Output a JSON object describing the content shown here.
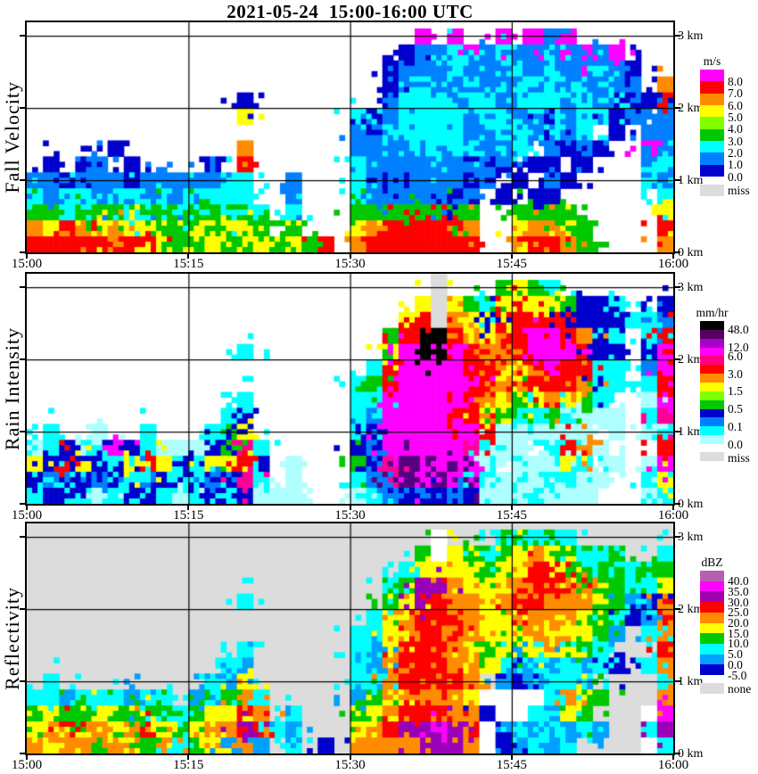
{
  "title": "2021-05-24  15:00-16:00 UTC",
  "chart_data": {
    "type": "heatmap",
    "title": "2021-05-24  15:00-16:00 UTC",
    "x_ticks": [
      "15:00",
      "15:15",
      "15:30",
      "15:45",
      "16:00"
    ],
    "x_tick_minutes": [
      0,
      15,
      30,
      45,
      60
    ],
    "y_km_labels": [
      "3 km",
      "2 km",
      "1 km",
      "0 km"
    ],
    "y_range_km": [
      0,
      3.1
    ],
    "grid": {
      "cols": 40,
      "rows": 14,
      "col_minutes": 1.5,
      "row_km": 0.2214
    },
    "panels": [
      {
        "id": "fall-velocity",
        "ylabel": "Fall Velocity",
        "background": "#FFFFFF",
        "legend": {
          "title": "m/s",
          "cells": [
            "#FF00FF",
            "#FF0000",
            "#FF8C00",
            "#FFFF00",
            "#7FFF00",
            "#00C800",
            "#00FFFF",
            "#0080FF",
            "#0000CD"
          ],
          "labels": [
            {
              "text": "8.0",
              "at": 1
            },
            {
              "text": "7.0",
              "at": 2
            },
            {
              "text": "6.0",
              "at": 3
            },
            {
              "text": "5.0",
              "at": 4
            },
            {
              "text": "4.0",
              "at": 5
            },
            {
              "text": "3.0",
              "at": 6
            },
            {
              "text": "2.0",
              "at": 7
            },
            {
              "text": "1.0",
              "at": 8
            },
            {
              "text": "0.0",
              "at": 9
            }
          ],
          "miss": {
            "color": "#DCDCDC",
            "label": "miss"
          }
        },
        "palette": {
          "0": "#0000CD",
          "1": "#0080FF",
          "2": "#00FFFF",
          "3": "#00C800",
          "4": "#7FFF00",
          "5": "#FFFF00",
          "6": "#FF8C00",
          "7": "#FF0000",
          "8": "#FF00FF"
        },
        "rows": [
          "........................8.8..8.818......",
          ".......................01128121121818...",
          "......................0111211221211210..",
          "......................0121121122121111.6",
          ".............0........122212211221212007",
          ".............5......201222212212012201.17",
          "....................112222211221212.0.11",
          ".....0.......6......11112122112.1010..81",
          ".0.01.0....0.7......2111121101.00.0...12",
          "1101110111112 2..1...210111101.0.10....21",
          "21221221212222..1...21111101.0.00......2",
          "332333233233232.2...33333333..3333.....5",
          "657656553353553.3...56777776..56653....7",
          "7777767753353353537.67777777..67763....6"
        ]
      },
      {
        "id": "rain-intensity",
        "ylabel": "Rain Intensity",
        "background": "#FFFFFF",
        "legend": {
          "title": "mm/hr",
          "cells": [
            "#000000",
            "#550060",
            "#AA00CC",
            "#FF00FF",
            "#FF0080",
            "#FF0000",
            "#FF8C00",
            "#FFFF00",
            "#7FFF00",
            "#00C800",
            "#0000CD",
            "#0080FF",
            "#00FFFF",
            "#AFFFFF"
          ],
          "labels": [
            {
              "text": "48.0",
              "at": 1
            },
            {
              "text": "12.0",
              "at": 3
            },
            {
              "text": "6.0",
              "at": 4
            },
            {
              "text": "3.0",
              "at": 6
            },
            {
              "text": "1.5",
              "at": 8
            },
            {
              "text": "0.5",
              "at": 10
            },
            {
              "text": "0.1",
              "at": 12
            },
            {
              "text": "0.0",
              "at": 14
            }
          ],
          "miss": {
            "color": "#DCDCDC",
            "label": "miss"
          }
        },
        "palette": {
          "p": "#AFFFFF",
          "b": "#00FFFF",
          "m": "#0080FF",
          "d": "#0000CD",
          "g": "#00C800",
          "h": "#7FFF00",
          "y": "#FFFF00",
          "o": "#FF8C00",
          "r": "#FF0000",
          "k": "#FF0096",
          "M": "#FF00FF",
          "i": "#550080",
          "K": "#000000",
          "x": "#DCDCDC"
        },
        "rows": [
          ".........................x...gygb.......",
          "........................yxygbyryygddb..d",
          ".......................yrxoydrrrrddddbbm",
          "......................grKKroyrrMMrodb.br",
          ".............b........yMKKMroorMMMrdd.dM",
          ".....................brMMMMrryorMrrbb.mM",
          "....................bgrMMMMMroyrrrodb.br",
          ".............b......bbMMMMMroygyoygb..pM",
          "............bd......bmMMMMrrygbbgbppp.bk",
          ".b..p..b...bdy......bdMMMMMMrpppppp.p.pb",
          "pbdpbMdbpppdgkb.....dmMMMMMkbpp.brop...r",
          "ydrydbyrydbyyrd.p...gdkiiMiMp.pppyb.p.pM",
          "dmbdmdbmdbdmdkb.p...bmiiMiMibpbpbbpp..by",
          "bddbpbddbpbdbdppp...pbmdmdmdpppbppp...pb"
        ]
      },
      {
        "id": "reflectivity",
        "ylabel": "Reflectivity",
        "background": "#DCDCDC",
        "legend": {
          "title": "dBZ",
          "cells": [
            "#B45FB0",
            "#FF00FF",
            "#A000B0",
            "#FF0000",
            "#FF8C00",
            "#FFFF00",
            "#00C800",
            "#00FFFF",
            "#00A0FF",
            "#0000CD"
          ],
          "labels": [
            {
              "text": "40.0",
              "at": 1
            },
            {
              "text": "35.0",
              "at": 2
            },
            {
              "text": "30.0",
              "at": 3
            },
            {
              "text": "25.0",
              "at": 4
            },
            {
              "text": "20.0",
              "at": 5
            },
            {
              "text": "15.0",
              "at": 6
            },
            {
              "text": "10.0",
              "at": 7
            },
            {
              "text": "5.0",
              "at": 8
            },
            {
              "text": "0.0",
              "at": 9
            },
            {
              "text": "-5.0",
              "at": 10
            }
          ],
          "miss": {
            "color": "#DCDCDC",
            "label": "none"
          }
        },
        "palette": {
          "w": "#FFFFFF",
          "d": "#0000CD",
          "s": "#00A0FF",
          "b": "#00FFFF",
          "g": "#00C800",
          "y": "#FFFF00",
          "o": "#FF8C00",
          "r": "#FF0000",
          "v": "#9900B8",
          "M": "#FF00FF",
          "u": "#B45FC0"
        },
        "rows": [
          ".........................w...bgbgb......",
          "........................gwygbgyoygbbg..b",
          ".......................byyyygyyrryggbbgg",
          "......................bgvvoyyoorrroggbby",
          ".............b........gyvrooyorroooygsdo",
          ".....................byorrroyyooooygbdsr",
          "....................bbyororoygyoyyygs.bo",
          ".............b......bsyrrroygygyoygb...r",
          "............bs......bsorrrooybsbsbsbd.bo",
          ".b.........bsy......bborrrro.sdsbbb....b",
          "bbsbbbsbb.sbgob.....sgyooooywwwwboyg...o",
          "gyggyggygbgyyro.b...gyorrroodwwbsyg...wM",
          "yoryoyorygyoovrbs...yorvvMvrwsbsbsbs..bv",
          "oyoogoygobgysos.b.d.ooooovvowdsbsb....wb"
        ]
      }
    ]
  }
}
